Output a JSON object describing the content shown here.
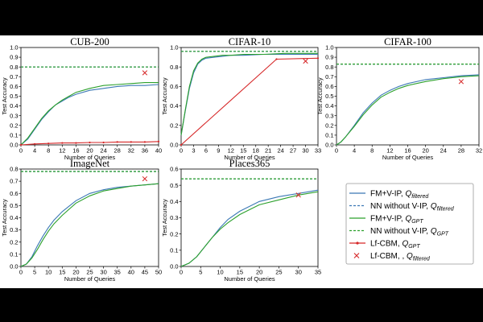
{
  "legend": [
    {
      "label": "FM+V-IP, ",
      "q": "Q",
      "sub": "filtered",
      "color": "#3b78b5",
      "style": "solid"
    },
    {
      "label": "NN without V-IP, ",
      "q": "Q",
      "sub": "filtered",
      "color": "#3b78b5",
      "style": "dashed"
    },
    {
      "label": "FM+V-IP, ",
      "q": "Q",
      "sub": "GPT",
      "color": "#2ca02c",
      "style": "solid"
    },
    {
      "label": "NN without V-IP, ",
      "q": "Q",
      "sub": "GPT",
      "color": "#2ca02c",
      "style": "dashed"
    },
    {
      "label": "Lf-CBM, ",
      "q": "Q",
      "sub": "GPT",
      "color": "#d62728",
      "style": "marker-line"
    },
    {
      "label": "Lf-CBM, , ",
      "q": "Q",
      "sub": "filtered",
      "color": "#d62728",
      "style": "x"
    }
  ],
  "chart_data": [
    {
      "type": "line",
      "title": "CUB-200",
      "xlabel": "Number of Queries",
      "ylabel": "Test Accuracy",
      "xlim": [
        0,
        40
      ],
      "ylim": [
        0,
        1.0
      ],
      "xticks": [
        0,
        4,
        8,
        12,
        16,
        20,
        24,
        28,
        32,
        36,
        40
      ],
      "yticks": [
        0.0,
        0.1,
        0.2,
        0.3,
        0.4,
        0.5,
        0.6,
        0.7,
        0.8,
        0.9,
        1.0
      ],
      "series": [
        {
          "name": "FM+V-IP, Qfiltered",
          "color": "#3b78b5",
          "style": "solid",
          "x": [
            0,
            2,
            4,
            6,
            8,
            10,
            12,
            14,
            16,
            20,
            24,
            28,
            32,
            36,
            40
          ],
          "y": [
            0.0,
            0.06,
            0.16,
            0.26,
            0.34,
            0.41,
            0.45,
            0.49,
            0.52,
            0.56,
            0.58,
            0.6,
            0.61,
            0.61,
            0.62
          ]
        },
        {
          "name": "FM+V-IP, QGPT",
          "color": "#2ca02c",
          "style": "solid",
          "x": [
            0,
            2,
            4,
            6,
            8,
            10,
            12,
            14,
            16,
            20,
            24,
            28,
            32,
            36,
            40
          ],
          "y": [
            0.0,
            0.07,
            0.17,
            0.27,
            0.35,
            0.41,
            0.46,
            0.5,
            0.54,
            0.58,
            0.61,
            0.62,
            0.63,
            0.64,
            0.64
          ]
        },
        {
          "name": "NN without V-IP, Qfiltered",
          "color": "#3b78b5",
          "style": "dashed",
          "x": [
            0,
            40
          ],
          "y": [
            0.8,
            0.8
          ]
        },
        {
          "name": "NN without V-IP, QGPT",
          "color": "#2ca02c",
          "style": "dashed",
          "x": [
            0,
            40
          ],
          "y": [
            0.8,
            0.8
          ]
        },
        {
          "name": "Lf-CBM, QGPT",
          "color": "#d62728",
          "style": "marker-line",
          "x": [
            0,
            4,
            8,
            12,
            16,
            20,
            24,
            28,
            32,
            36,
            40
          ],
          "y": [
            0.0,
            0.01,
            0.015,
            0.02,
            0.02,
            0.025,
            0.025,
            0.03,
            0.03,
            0.03,
            0.035
          ]
        },
        {
          "name": "Lf-CBM, Qfiltered",
          "color": "#d62728",
          "style": "x",
          "x": [
            36
          ],
          "y": [
            0.74
          ]
        }
      ]
    },
    {
      "type": "line",
      "title": "CIFAR-10",
      "xlabel": "Number of Queries",
      "ylabel": "Test Accuracy",
      "xlim": [
        0,
        33
      ],
      "ylim": [
        0,
        1.0
      ],
      "xticks": [
        0,
        3,
        6,
        9,
        12,
        15,
        18,
        21,
        24,
        27,
        30,
        33
      ],
      "yticks": [
        0.0,
        0.2,
        0.4,
        0.6,
        0.8,
        1.0
      ],
      "series": [
        {
          "name": "FM+V-IP, Qfiltered",
          "color": "#3b78b5",
          "style": "solid",
          "x": [
            0,
            1,
            2,
            3,
            4,
            5,
            6,
            8,
            10,
            12,
            15,
            20,
            25,
            30,
            33
          ],
          "y": [
            0.1,
            0.35,
            0.58,
            0.74,
            0.83,
            0.87,
            0.89,
            0.9,
            0.91,
            0.92,
            0.92,
            0.93,
            0.93,
            0.93,
            0.93
          ]
        },
        {
          "name": "FM+V-IP, QGPT",
          "color": "#2ca02c",
          "style": "solid",
          "x": [
            0,
            1,
            2,
            3,
            4,
            5,
            6,
            8,
            10,
            12,
            15,
            20,
            25,
            30,
            33
          ],
          "y": [
            0.1,
            0.36,
            0.6,
            0.76,
            0.84,
            0.88,
            0.9,
            0.91,
            0.92,
            0.92,
            0.93,
            0.93,
            0.94,
            0.94,
            0.94
          ]
        },
        {
          "name": "NN without V-IP, Qfiltered",
          "color": "#3b78b5",
          "style": "dashed",
          "x": [
            0,
            33
          ],
          "y": [
            0.96,
            0.96
          ]
        },
        {
          "name": "NN without V-IP, QGPT",
          "color": "#2ca02c",
          "style": "dashed",
          "x": [
            0,
            33
          ],
          "y": [
            0.96,
            0.96
          ]
        },
        {
          "name": "Lf-CBM, QGPT",
          "color": "#d62728",
          "style": "marker-line",
          "x": [
            0,
            23,
            33
          ],
          "y": [
            0.0,
            0.88,
            0.89
          ]
        },
        {
          "name": "Lf-CBM, Qfiltered",
          "color": "#d62728",
          "style": "x",
          "x": [
            30
          ],
          "y": [
            0.86
          ]
        }
      ]
    },
    {
      "type": "line",
      "title": "CIFAR-100",
      "xlabel": "Number of Queries",
      "ylabel": "Test Accuracy",
      "xlim": [
        0,
        32
      ],
      "ylim": [
        0,
        1.0
      ],
      "xticks": [
        0,
        4,
        8,
        12,
        16,
        20,
        24,
        28,
        32
      ],
      "yticks": [
        0.0,
        0.1,
        0.2,
        0.3,
        0.4,
        0.5,
        0.6,
        0.7,
        0.8,
        0.9,
        1.0
      ],
      "series": [
        {
          "name": "FM+V-IP, Qfiltered",
          "color": "#3b78b5",
          "style": "solid",
          "x": [
            0,
            1,
            2,
            4,
            6,
            8,
            10,
            12,
            14,
            16,
            20,
            24,
            28,
            32
          ],
          "y": [
            0.0,
            0.03,
            0.08,
            0.2,
            0.33,
            0.43,
            0.51,
            0.56,
            0.6,
            0.63,
            0.67,
            0.69,
            0.71,
            0.72
          ]
        },
        {
          "name": "FM+V-IP, QGPT",
          "color": "#2ca02c",
          "style": "solid",
          "x": [
            0,
            1,
            2,
            4,
            6,
            8,
            10,
            12,
            14,
            16,
            20,
            24,
            28,
            32
          ],
          "y": [
            0.0,
            0.03,
            0.08,
            0.19,
            0.31,
            0.41,
            0.49,
            0.54,
            0.58,
            0.61,
            0.65,
            0.68,
            0.7,
            0.71
          ]
        },
        {
          "name": "NN without V-IP, Qfiltered",
          "color": "#3b78b5",
          "style": "dashed",
          "x": [
            0,
            32
          ],
          "y": [
            0.83,
            0.83
          ]
        },
        {
          "name": "NN without V-IP, QGPT",
          "color": "#2ca02c",
          "style": "dashed",
          "x": [
            0,
            32
          ],
          "y": [
            0.83,
            0.83
          ]
        },
        {
          "name": "Lf-CBM, Qfiltered",
          "color": "#d62728",
          "style": "x",
          "x": [
            28
          ],
          "y": [
            0.65
          ]
        }
      ]
    },
    {
      "type": "line",
      "title": "ImageNet",
      "xlabel": "Number of Queries",
      "ylabel": "Test Accuracy",
      "xlim": [
        0,
        50
      ],
      "ylim": [
        0,
        0.8
      ],
      "xticks": [
        0,
        5,
        10,
        15,
        20,
        25,
        30,
        35,
        40,
        45,
        50
      ],
      "yticks": [
        0.0,
        0.1,
        0.2,
        0.3,
        0.4,
        0.5,
        0.6,
        0.7,
        0.8
      ],
      "series": [
        {
          "name": "FM+V-IP, Qfiltered",
          "color": "#3b78b5",
          "style": "solid",
          "x": [
            0,
            2,
            4,
            6,
            8,
            10,
            12,
            15,
            20,
            25,
            30,
            35,
            40,
            45,
            50
          ],
          "y": [
            0.0,
            0.02,
            0.08,
            0.17,
            0.25,
            0.32,
            0.38,
            0.45,
            0.54,
            0.6,
            0.63,
            0.65,
            0.66,
            0.67,
            0.68
          ]
        },
        {
          "name": "FM+V-IP, QGPT",
          "color": "#2ca02c",
          "style": "solid",
          "x": [
            0,
            2,
            4,
            6,
            8,
            10,
            12,
            15,
            20,
            25,
            30,
            35,
            40,
            45,
            50
          ],
          "y": [
            0.0,
            0.02,
            0.07,
            0.14,
            0.22,
            0.29,
            0.35,
            0.42,
            0.52,
            0.58,
            0.62,
            0.64,
            0.66,
            0.67,
            0.68
          ]
        },
        {
          "name": "NN without V-IP, Qfiltered",
          "color": "#3b78b5",
          "style": "dashed",
          "x": [
            0,
            50
          ],
          "y": [
            0.78,
            0.78
          ]
        },
        {
          "name": "NN without V-IP, QGPT",
          "color": "#2ca02c",
          "style": "dashed",
          "x": [
            0,
            50
          ],
          "y": [
            0.78,
            0.78
          ]
        },
        {
          "name": "Lf-CBM, Qfiltered",
          "color": "#d62728",
          "style": "x",
          "x": [
            45
          ],
          "y": [
            0.72
          ]
        }
      ]
    },
    {
      "type": "line",
      "title": "Places365",
      "xlabel": "Number of Queries",
      "ylabel": "Test Accuracy",
      "xlim": [
        0,
        35
      ],
      "ylim": [
        0,
        0.6
      ],
      "xticks": [
        0,
        5,
        10,
        15,
        20,
        25,
        30,
        35
      ],
      "yticks": [
        0.0,
        0.1,
        0.2,
        0.3,
        0.4,
        0.5,
        0.6
      ],
      "series": [
        {
          "name": "FM+V-IP, Qfiltered",
          "color": "#3b78b5",
          "style": "solid",
          "x": [
            0,
            2,
            4,
            6,
            8,
            10,
            12,
            15,
            20,
            25,
            30,
            35
          ],
          "y": [
            0.0,
            0.02,
            0.06,
            0.12,
            0.18,
            0.24,
            0.29,
            0.34,
            0.4,
            0.43,
            0.45,
            0.47
          ]
        },
        {
          "name": "FM+V-IP, QGPT",
          "color": "#2ca02c",
          "style": "solid",
          "x": [
            0,
            2,
            4,
            6,
            8,
            10,
            12,
            15,
            20,
            25,
            30,
            35
          ],
          "y": [
            0.0,
            0.02,
            0.06,
            0.12,
            0.18,
            0.23,
            0.27,
            0.32,
            0.38,
            0.41,
            0.44,
            0.46
          ]
        },
        {
          "name": "NN without V-IP, Qfiltered",
          "color": "#3b78b5",
          "style": "dashed",
          "x": [
            0,
            35
          ],
          "y": [
            0.54,
            0.54
          ]
        },
        {
          "name": "NN without V-IP, QGPT",
          "color": "#2ca02c",
          "style": "dashed",
          "x": [
            0,
            35
          ],
          "y": [
            0.54,
            0.54
          ]
        },
        {
          "name": "Lf-CBM, Qfiltered",
          "color": "#d62728",
          "style": "x",
          "x": [
            30
          ],
          "y": [
            0.44
          ]
        }
      ]
    }
  ]
}
